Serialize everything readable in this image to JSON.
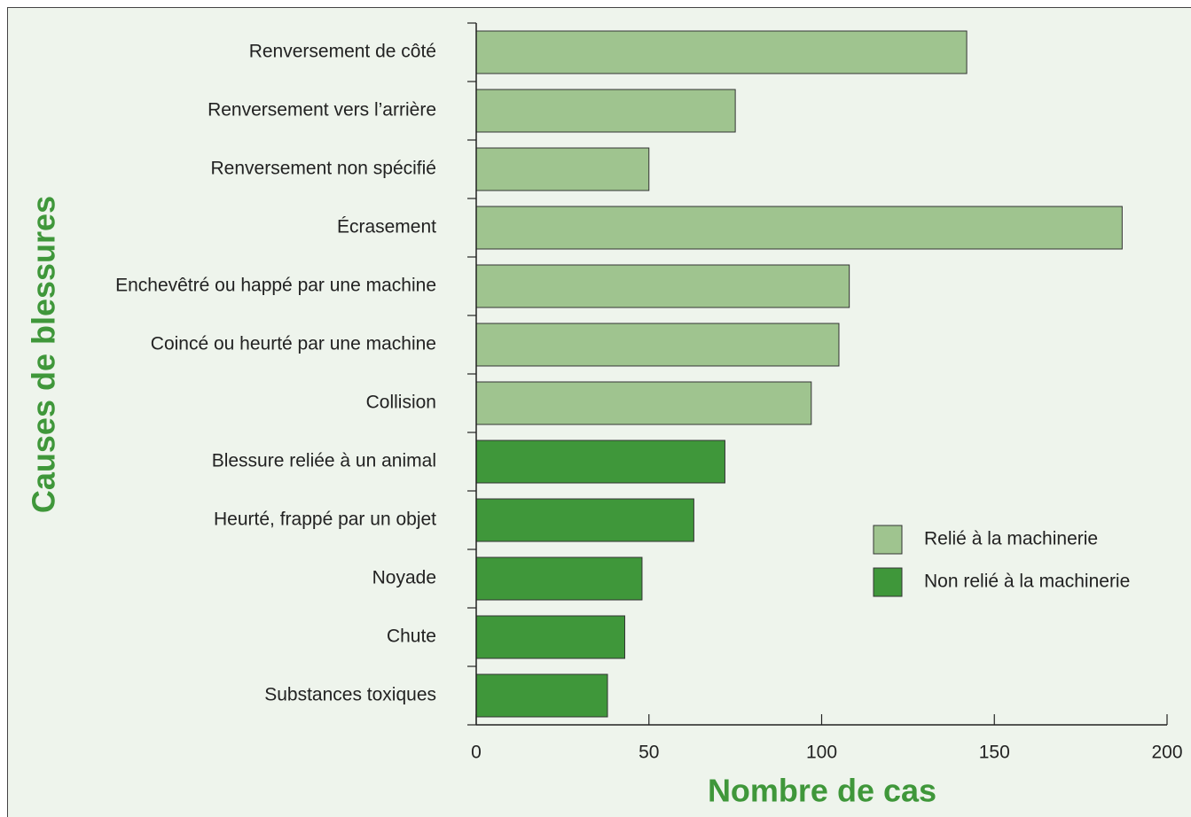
{
  "chart_data": {
    "type": "bar",
    "orientation": "horizontal",
    "xlabel": "Nombre de cas",
    "ylabel": "Causes de blessures",
    "categories": [
      "Renversement de côté",
      "Renversement vers l’arrière",
      "Renversement non spécifié",
      "Écrasement",
      "Enchevêtré ou happé par une machine",
      "Coincé ou heurté par une machine",
      "Collision",
      "Blessure reliée à un animal",
      "Heurté, frappé par un objet",
      "Noyade",
      "Chute",
      "Substances toxiques"
    ],
    "series": [
      {
        "name": "Relié à la machinerie",
        "color": "#9fc48f",
        "values": [
          142,
          75,
          50,
          187,
          108,
          105,
          97,
          null,
          null,
          null,
          null,
          null
        ]
      },
      {
        "name": "Non relié à la machinerie",
        "color": "#3f973a",
        "values": [
          null,
          null,
          null,
          null,
          null,
          null,
          null,
          72,
          63,
          48,
          43,
          38
        ]
      }
    ],
    "xlim": [
      0,
      200
    ],
    "xticks": [
      0,
      50,
      100,
      150,
      200
    ],
    "legend": "right"
  }
}
